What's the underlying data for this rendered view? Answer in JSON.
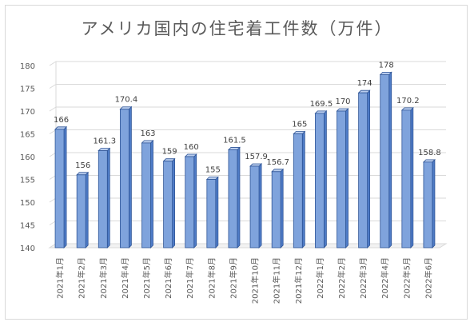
{
  "chart_data": {
    "type": "bar",
    "title": "アメリカ国内の住宅着工件数（万件）",
    "categories": [
      "2021年1月",
      "2021年2月",
      "2021年3月",
      "2021年4月",
      "2021年5月",
      "2021年6月",
      "2021年7月",
      "2021年8月",
      "2021年9月",
      "2021年10月",
      "2021年11月",
      "2021年12月",
      "2022年1月",
      "2022年2月",
      "2022年3月",
      "2022年4月",
      "2022年5月",
      "2022年6月"
    ],
    "values": [
      166,
      156,
      161.3,
      170.4,
      163,
      159,
      160,
      155,
      161.5,
      157.9,
      156.7,
      165,
      169.5,
      170,
      174,
      178,
      170.2,
      158.8
    ],
    "data_labels": [
      "166",
      "156",
      "161.3",
      "170.4",
      "163",
      "159",
      "160",
      "155",
      "161.5",
      "157.9",
      "156.7",
      "165",
      "169.5",
      "170",
      "174",
      "178",
      "170.2",
      "158.8"
    ],
    "ylim": [
      140,
      180
    ],
    "yticks": [
      140,
      145,
      150,
      155,
      160,
      165,
      170,
      175,
      180
    ],
    "grid": true,
    "legend": "none",
    "colors": {
      "bar_front": "#7fa3dc",
      "bar_side": "#4f7cc7",
      "bar_top": "#b9cdee",
      "bar_edge": "#2f5597",
      "grid": "#d9d9d9"
    }
  }
}
